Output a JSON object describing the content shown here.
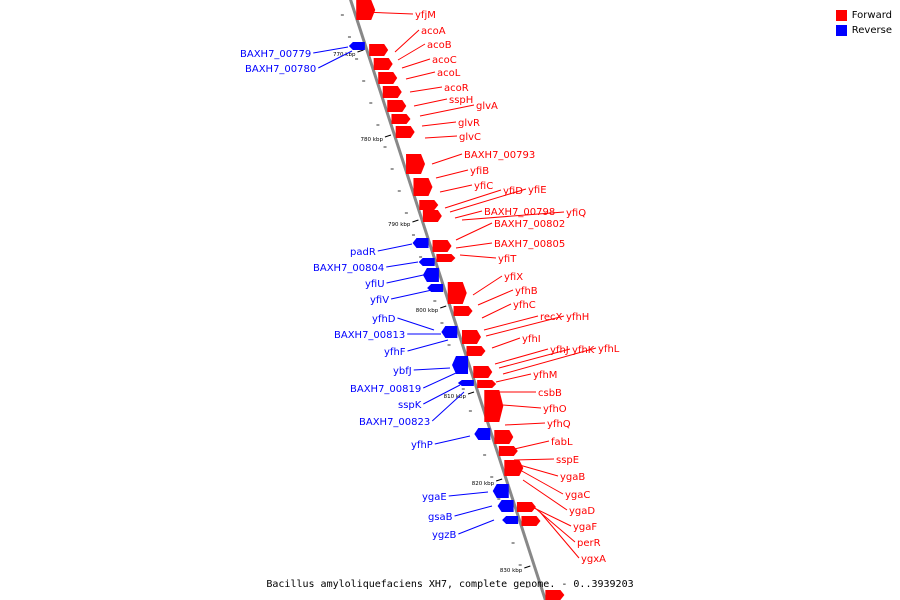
{
  "colors": {
    "forward": "#ff0000",
    "reverse": "#0000ff",
    "backbone": "#888888"
  },
  "legend": [
    {
      "label": "Forward",
      "color": "#ff0000"
    },
    {
      "label": "Reverse",
      "color": "#0000ff"
    }
  ],
  "caption": "Bacillus amyloliquefaciens XH7, complete genome. - 0..3939203",
  "scale_labels": [
    "770 kbp",
    "780 kbp",
    "790 kbp",
    "800 kbp",
    "810 kbp",
    "820 kbp",
    "830 kbp"
  ],
  "forward_genes": [
    "yfjM",
    "acoA",
    "acoB",
    "acoC",
    "acoL",
    "acoR",
    "sspH",
    "glvA",
    "glvR",
    "glvC",
    "BAXH7_00793",
    "yfiB",
    "yfiC",
    "yfiD",
    "yfiE",
    "BAXH7_00798",
    "yfiQ",
    "BAXH7_00802",
    "BAXH7_00805",
    "yfiT",
    "yfiX",
    "yfhB",
    "yfhC",
    "recX",
    "yfhH",
    "yfhI",
    "yfhJ",
    "yfhK",
    "yfhL",
    "yfhM",
    "csbB",
    "yfhO",
    "yfhQ",
    "fabL",
    "sspE",
    "ygaB",
    "ygaC",
    "ygaD",
    "ygaF",
    "perR",
    "ygxA"
  ],
  "reverse_genes": [
    "BAXH7_00779",
    "BAXH7_00780",
    "padR",
    "BAXH7_00804",
    "yfiU",
    "yfiV",
    "yfhD",
    "BAXH7_00813",
    "yfhF",
    "ybfJ",
    "BAXH7_00819",
    "sspK",
    "BAXH7_00823",
    "yfhP",
    "ygaE",
    "gsaB",
    "ygzB"
  ]
}
